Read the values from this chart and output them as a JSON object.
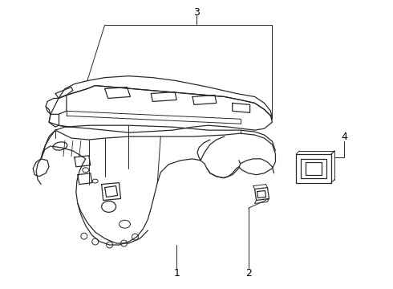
{
  "background_color": "#ffffff",
  "line_color": "#2a2a2a",
  "label_color": "#000000",
  "lw": 0.9,
  "label_fontsize": 9
}
